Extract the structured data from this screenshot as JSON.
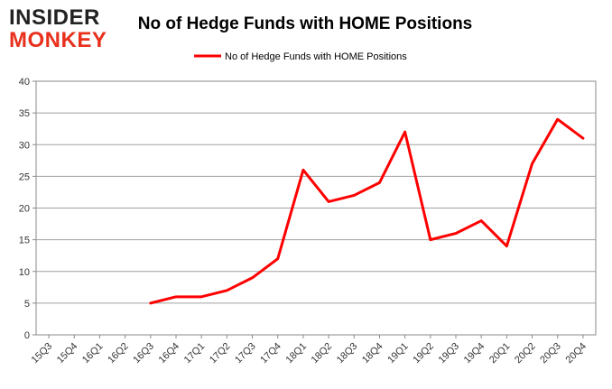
{
  "logo": {
    "line1": "INSIDER",
    "line2": "MONKEY",
    "color_dark": "#222222",
    "color_accent": "#e8301c"
  },
  "chart_data": {
    "type": "line",
    "title": "No of Hedge Funds with HOME Positions",
    "xlabel": "",
    "ylabel": "",
    "categories": [
      "15Q3",
      "15Q4",
      "16Q1",
      "16Q2",
      "16Q3",
      "16Q4",
      "17Q1",
      "17Q2",
      "17Q3",
      "17Q4",
      "18Q1",
      "18Q2",
      "18Q3",
      "18Q4",
      "19Q1",
      "19Q2",
      "19Q3",
      "19Q4",
      "20Q1",
      "20Q2",
      "20Q3",
      "20Q4"
    ],
    "series": [
      {
        "name": "No of Hedge Funds with HOME Positions",
        "color": "#ff0000",
        "values": [
          null,
          null,
          null,
          null,
          5,
          6,
          6,
          7,
          9,
          12,
          26,
          21,
          22,
          24,
          32,
          15,
          16,
          18,
          14,
          27,
          34,
          31
        ]
      }
    ],
    "ylim": [
      0,
      40
    ],
    "yticks": [
      0,
      5,
      10,
      15,
      20,
      25,
      30,
      35,
      40
    ],
    "grid": true,
    "legend_position": "top-center"
  }
}
